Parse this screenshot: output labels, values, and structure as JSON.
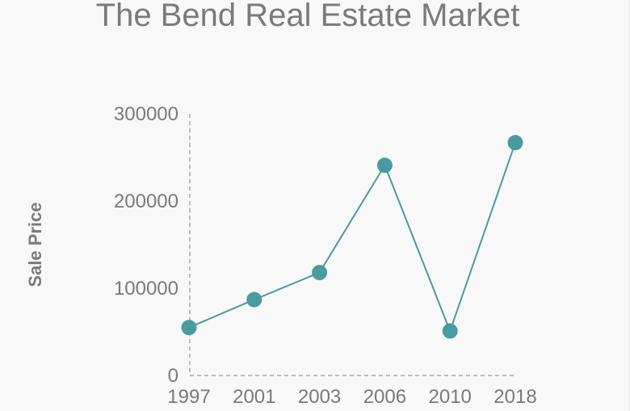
{
  "chart_data": {
    "type": "line",
    "title": "The Bend Real Estate Market",
    "xlabel": "",
    "ylabel": "Sale Price",
    "categories": [
      "1997",
      "2001",
      "2003",
      "2006",
      "2010",
      "2018"
    ],
    "series": [
      {
        "values": [
          55000,
          87000,
          118000,
          241000,
          51000,
          267000
        ]
      }
    ],
    "ylim": [
      0,
      300000
    ],
    "yticks": [
      0,
      100000,
      200000,
      300000
    ],
    "grid": false,
    "colors": {
      "line": "#4a9ba0",
      "marker": "#4a9ba0"
    }
  }
}
